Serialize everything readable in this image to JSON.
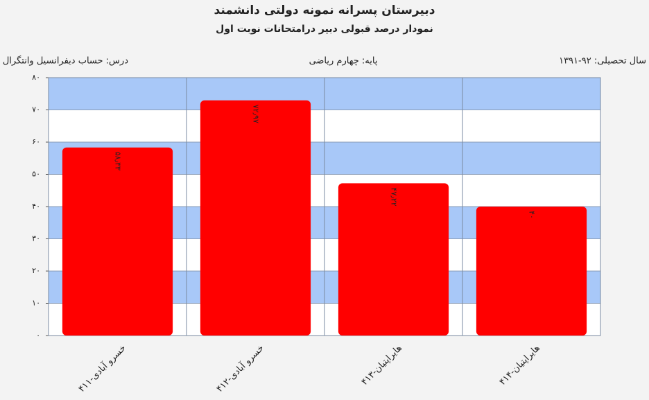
{
  "chart_data": {
    "type": "bar",
    "title": "دبیرستان پسرانه نمونه دولتی دانشمند",
    "subtitle": "نمودار درصد قبولی دبیر درامتحانات نوبت اول",
    "info": [
      "سال تحصیلی: ۹۲-۱۳۹۱",
      "پایه: چهارم ریاضی",
      "درس: حساب دیفرانسیل وانتگرال"
    ],
    "categories": [
      "خسرو آبادی-۴۱۱",
      "خسرو آبادی-۴۱۲",
      "هایراپتیان-۴۱۳",
      "هایراپتیان-۴۱۴"
    ],
    "values": [
      58.33,
      72.97,
      47.22,
      40
    ],
    "value_labels": [
      "۵۸٫۳۳",
      "۷۲٫۹۷",
      "۴۷٫۲۲",
      "۴۰"
    ],
    "color": "#ff0000",
    "band_colors": [
      "#ffffff",
      "#a8c8f8"
    ],
    "ylim": [
      0,
      80
    ],
    "yticks": [
      {
        "value": 0,
        "label": "۰"
      },
      {
        "value": 10,
        "label": "۱۰"
      },
      {
        "value": 20,
        "label": "۲۰"
      },
      {
        "value": 30,
        "label": "۳۰"
      },
      {
        "value": 40,
        "label": "۴۰"
      },
      {
        "value": 50,
        "label": "۵۰"
      },
      {
        "value": 60,
        "label": "۶۰"
      },
      {
        "value": 70,
        "label": "۷۰"
      },
      {
        "value": 80,
        "label": "۸۰"
      }
    ],
    "grid": true
  }
}
